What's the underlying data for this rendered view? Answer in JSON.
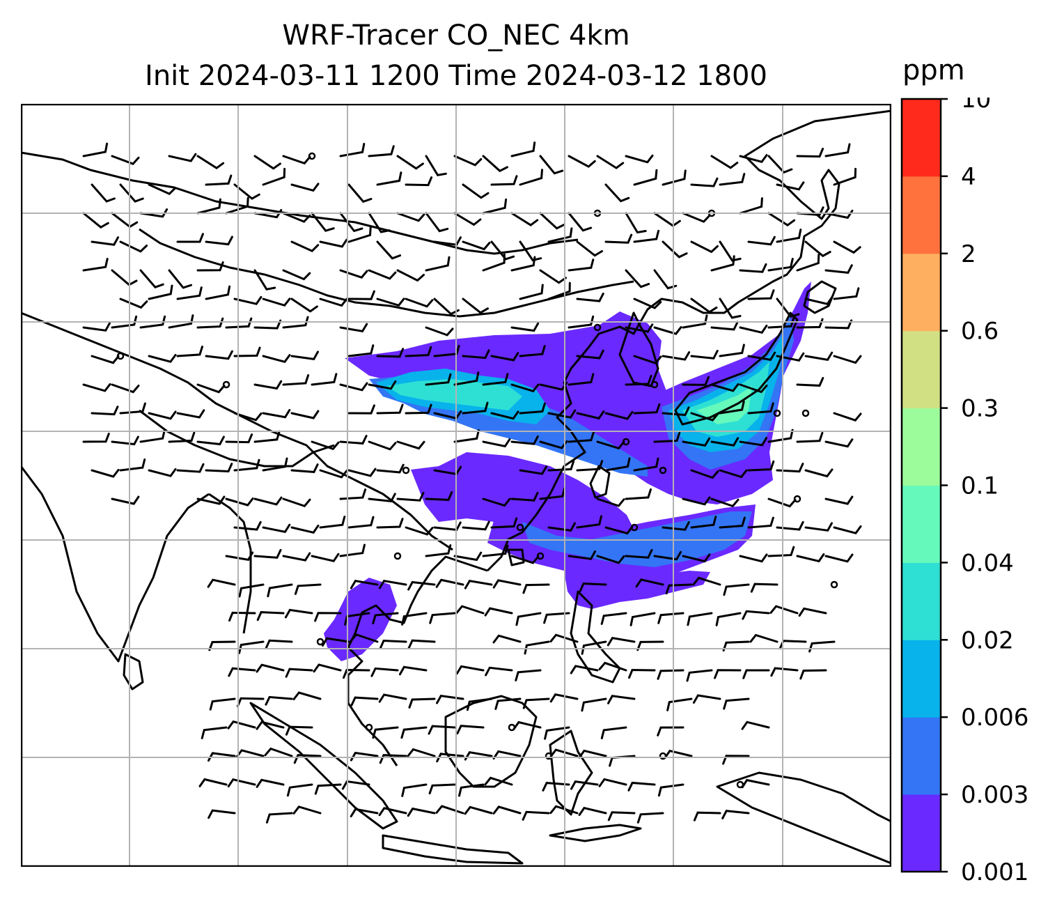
{
  "title": {
    "line1": "WRF-Tracer CO_NEC 4km",
    "line2": "Init 2024-03-11 1200 Time 2024-03-12 1800"
  },
  "colorbar": {
    "units": "ppm",
    "levels": [
      {
        "label": "0.001",
        "color": "#6a29ff"
      },
      {
        "label": "0.003",
        "color": "#3375f5"
      },
      {
        "label": "0.006",
        "color": "#08b2eb"
      },
      {
        "label": "0.02",
        "color": "#2ee0d4"
      },
      {
        "label": "0.04",
        "color": "#66f9bc"
      },
      {
        "label": "0.1",
        "color": "#9cfb9a"
      },
      {
        "label": "0.3",
        "color": "#d2e084"
      },
      {
        "label": "0.6",
        "color": "#ffaf60"
      },
      {
        "label": "2",
        "color": "#ff723d"
      },
      {
        "label": "4",
        "color": "#ff2a1c"
      },
      {
        "label": "10",
        "color": null
      }
    ]
  },
  "chart_data": {
    "type": "heatmap",
    "title": "WRF-Tracer CO_NEC 4km",
    "subtitle": "Init 2024-03-11 1200 Time 2024-03-12 1800",
    "variable": "CO_NEC tracer",
    "units": "ppm",
    "colorbar_levels": [
      0.001,
      0.003,
      0.006,
      0.02,
      0.04,
      0.1,
      0.3,
      0.6,
      2,
      4,
      10
    ],
    "overlay": "wind barbs",
    "map": "coastlines and borders, East / Southeast Asia",
    "gridlines": true,
    "legend_position": "right",
    "plume_description": [
      {
        "region": "North China to Korea and Japan",
        "max_level": "0.04-0.1"
      },
      {
        "region": "Yangtze basin to East China Sea",
        "max_level": "0.006-0.02"
      },
      {
        "region": "South China to Taiwan and Pacific",
        "max_level": "0.003-0.02"
      },
      {
        "region": "Indochina",
        "max_level": "0.001-0.003"
      }
    ]
  }
}
